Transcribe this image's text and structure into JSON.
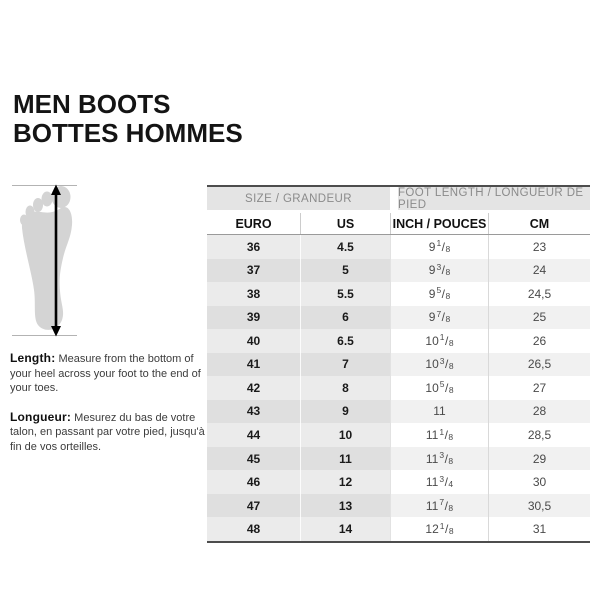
{
  "page": {
    "title_line1": "MEN BOOTS",
    "title_line2": "BOTTES HOMMES"
  },
  "instructions": {
    "length_label": "Length:",
    "length_text": " Measure from the bottom of your heel across your foot to the end of your toes.",
    "longueur_label": "Longueur:",
    "longueur_text": " Mesurez du bas de votre talon, en passant par votre pied, jusqu'à la fin de vos orteilles."
  },
  "figure": {
    "description": "foot-sole-silhouette-with-length-arrow"
  },
  "table": {
    "group_headers": [
      "SIZE / GRANDEUR",
      "FOOT LENGTH / LONGUEUR DE PIED"
    ],
    "column_headers": [
      "EURO",
      "US",
      "INCH / POUCES",
      "CM"
    ],
    "rows": [
      [
        "36",
        "4.5",
        "9 1/8",
        "23"
      ],
      [
        "37",
        "5",
        "9 3/8",
        "24"
      ],
      [
        "38",
        "5.5",
        "9 5/8",
        "24,5"
      ],
      [
        "39",
        "6",
        "9 7/8",
        "25"
      ],
      [
        "40",
        "6.5",
        "10 1/8",
        "26"
      ],
      [
        "41",
        "7",
        "10 3/8",
        "26,5"
      ],
      [
        "42",
        "8",
        "10 5/8",
        "27"
      ],
      [
        "43",
        "9",
        "11",
        "28"
      ],
      [
        "44",
        "10",
        "11 1/8",
        "28,5"
      ],
      [
        "45",
        "11",
        "11 3/8",
        "29"
      ],
      [
        "46",
        "12",
        "11 3/4",
        "30"
      ],
      [
        "47",
        "13",
        "11 7/8",
        "30,5"
      ],
      [
        "48",
        "14",
        "12 1/8",
        "31"
      ]
    ]
  },
  "colors": {
    "table_border_dark": "#4d4d4d",
    "group_header_bg": "#e4e4e4",
    "group_header_text": "#8b8b8b",
    "row_gray_light": "#ebebeb",
    "row_gray_dark": "#dfdfdf",
    "row_white_alt": "#f1f1f1",
    "foot_fill": "#d4d4d4",
    "text_dark": "#1a1a1a"
  }
}
